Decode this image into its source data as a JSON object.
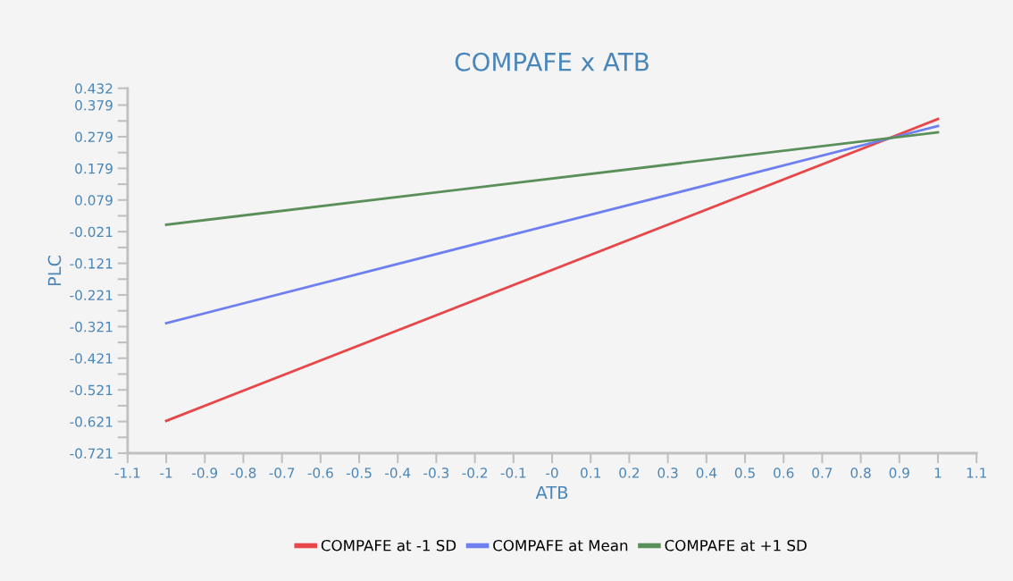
{
  "chart_data": {
    "type": "line",
    "title": "COMPAFE x ATB",
    "xlabel": "ATB",
    "ylabel": "PLC",
    "x": [
      -1,
      1
    ],
    "series": [
      {
        "name": "COMPAFE at -1 SD",
        "color": "#e8474a",
        "values": [
          -0.619,
          0.335
        ]
      },
      {
        "name": "COMPAFE at Mean",
        "color": "#6e7ff0",
        "values": [
          -0.31,
          0.313
        ]
      },
      {
        "name": "COMPAFE at +1 SD",
        "color": "#5a8f5a",
        "values": [
          0.001,
          0.293
        ]
      }
    ],
    "xlim": [
      -1.1,
      1.1
    ],
    "xticks": [
      -1.1,
      -1,
      -0.9,
      -0.8,
      -0.7,
      -0.6,
      -0.5,
      -0.4,
      -0.3,
      -0.2,
      -0.1,
      {
        "value": 0,
        "label": "-0"
      },
      0.1,
      0.2,
      0.3,
      0.4,
      0.5,
      0.6,
      0.7,
      0.8,
      0.9,
      1,
      1.1
    ],
    "ylim": [
      -0.721,
      0.432
    ],
    "yticks": [
      -0.721,
      {
        "value": -0.671,
        "label": null
      },
      -0.621,
      {
        "value": -0.571,
        "label": null
      },
      -0.521,
      {
        "value": -0.471,
        "label": null
      },
      -0.421,
      {
        "value": -0.371,
        "label": null
      },
      -0.321,
      {
        "value": -0.271,
        "label": null
      },
      -0.221,
      {
        "value": -0.171,
        "label": null
      },
      -0.121,
      {
        "value": -0.071,
        "label": null
      },
      -0.021,
      {
        "value": 0.029,
        "label": null
      },
      0.079,
      {
        "value": 0.129,
        "label": null
      },
      0.179,
      {
        "value": 0.229,
        "label": null
      },
      0.279,
      {
        "value": 0.329,
        "label": null
      },
      0.379,
      0.432
    ],
    "grid": false,
    "legend": "bottom",
    "marker": "none",
    "line_style": "solid"
  }
}
